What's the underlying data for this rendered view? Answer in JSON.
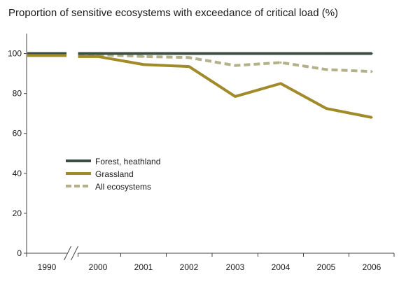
{
  "chart_data": {
    "type": "line",
    "title": "Proportion of sensitive ecosystems with exceedance of critical load (%)",
    "xlabel": "",
    "ylabel": "",
    "categories": [
      "1990",
      "2000",
      "2001",
      "2002",
      "2003",
      "2004",
      "2005",
      "2006"
    ],
    "axis_break_after_index": 0,
    "ylim": [
      0,
      110
    ],
    "yticks": [
      0,
      20,
      40,
      60,
      80,
      100
    ],
    "grid": false,
    "legend_position": "lower-left",
    "series": [
      {
        "name": "Forest, heathland",
        "color": "#3d4f43",
        "style": "solid",
        "values": [
          100,
          100,
          100,
          100,
          100,
          100,
          100,
          100
        ]
      },
      {
        "name": "Grassland",
        "color": "#a08a2a",
        "style": "solid",
        "values": [
          99,
          98.5,
          94.5,
          93.5,
          78.5,
          85,
          72.5,
          68
        ]
      },
      {
        "name": "All ecosystems",
        "color": "#b3b08a",
        "style": "dashed",
        "values": [
          100,
          99.5,
          98.5,
          98,
          94,
          95.5,
          92,
          91
        ]
      }
    ]
  }
}
